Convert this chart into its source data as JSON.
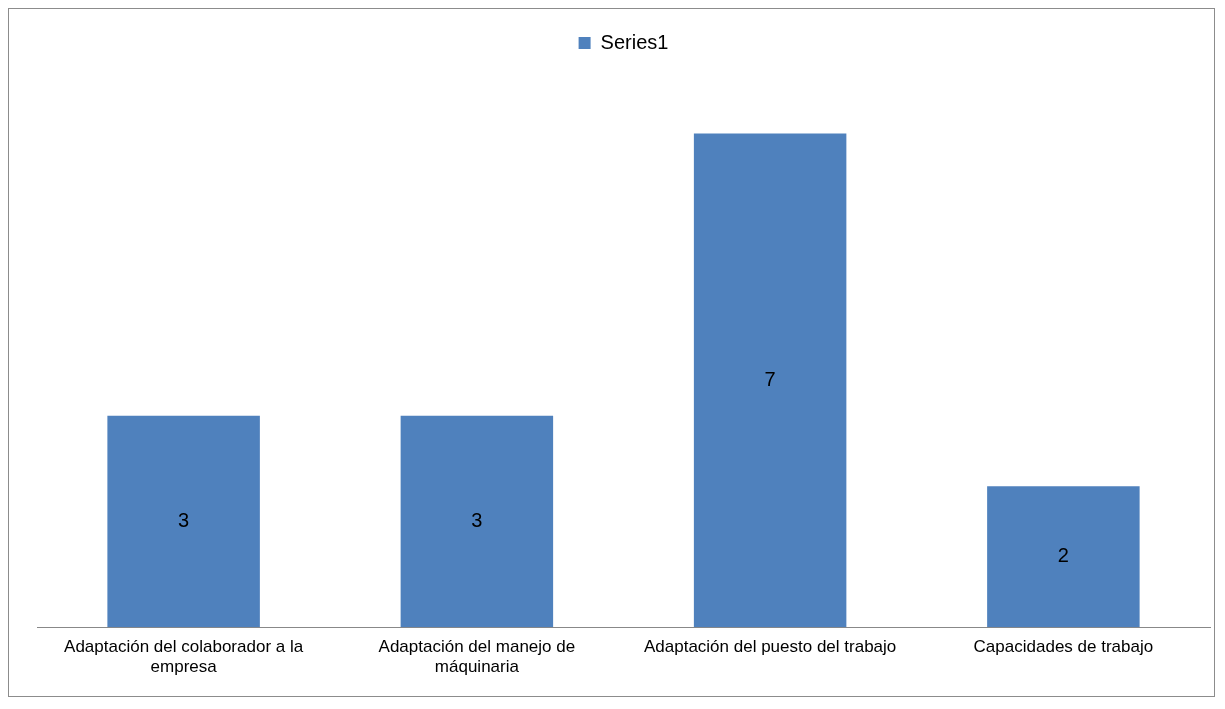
{
  "chart_data": {
    "type": "bar",
    "categories": [
      "Adaptación del colaborador a la empresa",
      "Adaptación del manejo de máquinaria",
      "Adaptación del puesto del trabajo",
      "Capacidades de trabajo"
    ],
    "series": [
      {
        "name": "Series1",
        "color": "#4f81bd",
        "values": [
          3,
          3,
          7,
          2
        ]
      }
    ],
    "data_labels": true,
    "legend": "top",
    "grid": false,
    "tick_labels": "x"
  }
}
